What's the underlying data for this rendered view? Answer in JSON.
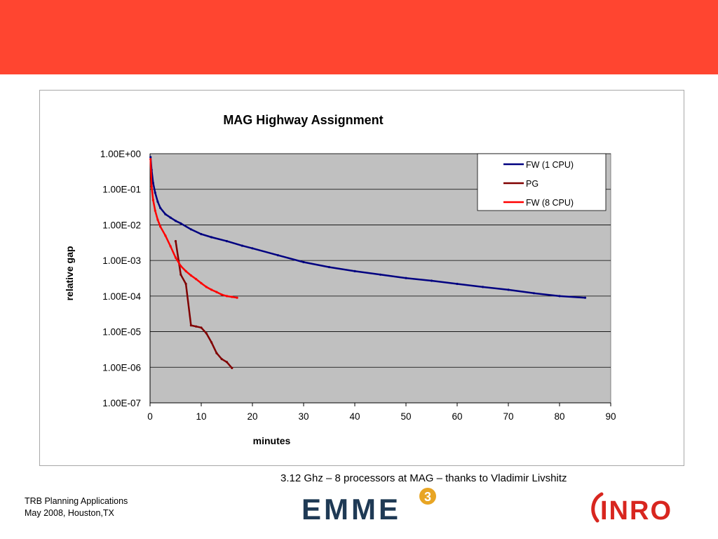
{
  "slide": {
    "caption": "3.12 Ghz – 8 processors at MAG – thanks to Vladimir Livshitz",
    "footer_line1": "TRB Planning Applications",
    "footer_line2": "May 2008, Houston,TX",
    "banner_color": "#ff4530",
    "logos": {
      "emme": {
        "text": "EMME",
        "superscript": "3",
        "color": "#1f3a55",
        "badge_color": "#e8a524"
      },
      "inro": {
        "text": "INRO",
        "color": "#d8261f"
      }
    }
  },
  "chart_data": {
    "type": "line",
    "title": "MAG Highway Assignment",
    "xlabel": "minutes",
    "ylabel": "relative gap",
    "xlim": [
      0,
      90
    ],
    "xticks": [
      0,
      10,
      20,
      30,
      40,
      50,
      60,
      70,
      80,
      90
    ],
    "y_scale": "log",
    "ylim": [
      1e-07,
      1
    ],
    "ytick_labels": [
      "1.00E+00",
      "1.00E-01",
      "1.00E-02",
      "1.00E-03",
      "1.00E-04",
      "1.00E-05",
      "1.00E-06",
      "1.00E-07"
    ],
    "ytick_values": [
      1,
      0.1,
      0.01,
      0.001,
      0.0001,
      1e-05,
      1e-06,
      1e-07
    ],
    "grid": "horizontal",
    "plot_background": "#c0c0c0",
    "legend_position": "top-right",
    "series": [
      {
        "name": "FW (1 CPU)",
        "color": "#000080",
        "x": [
          0.1,
          0.3,
          0.6,
          1,
          1.5,
          2,
          3,
          4,
          5,
          6,
          8,
          10,
          12,
          15,
          18,
          20,
          25,
          30,
          35,
          40,
          45,
          50,
          55,
          60,
          65,
          70,
          75,
          80,
          85
        ],
        "y": [
          0.8,
          0.35,
          0.15,
          0.08,
          0.045,
          0.03,
          0.02,
          0.016,
          0.013,
          0.011,
          0.0075,
          0.0055,
          0.0045,
          0.0035,
          0.0026,
          0.0022,
          0.0014,
          0.0009,
          0.00065,
          0.0005,
          0.0004,
          0.00032,
          0.00027,
          0.00022,
          0.00018,
          0.00015,
          0.00012,
          0.0001,
          9e-05
        ]
      },
      {
        "name": "PG",
        "color": "#800000",
        "x": [
          5,
          6,
          7,
          8,
          9,
          10,
          11,
          12,
          13,
          14,
          15,
          16
        ],
        "y": [
          0.0035,
          0.0004,
          0.00022,
          1.5e-05,
          1.4e-05,
          1.3e-05,
          9e-06,
          5e-06,
          2.5e-06,
          1.7e-06,
          1.4e-06,
          9.5e-07
        ]
      },
      {
        "name": "FW (8 CPU)",
        "color": "#ff0000",
        "x": [
          0.1,
          0.3,
          0.6,
          1,
          1.5,
          2,
          3,
          4,
          5,
          6,
          7,
          8,
          9,
          10,
          11,
          12,
          13,
          14,
          15,
          16,
          17
        ],
        "y": [
          0.7,
          0.12,
          0.05,
          0.025,
          0.014,
          0.009,
          0.005,
          0.0025,
          0.0012,
          0.0007,
          0.0005,
          0.00038,
          0.0003,
          0.00023,
          0.00018,
          0.00015,
          0.00013,
          0.00011,
          0.0001,
          9.5e-05,
          9e-05
        ]
      }
    ]
  }
}
